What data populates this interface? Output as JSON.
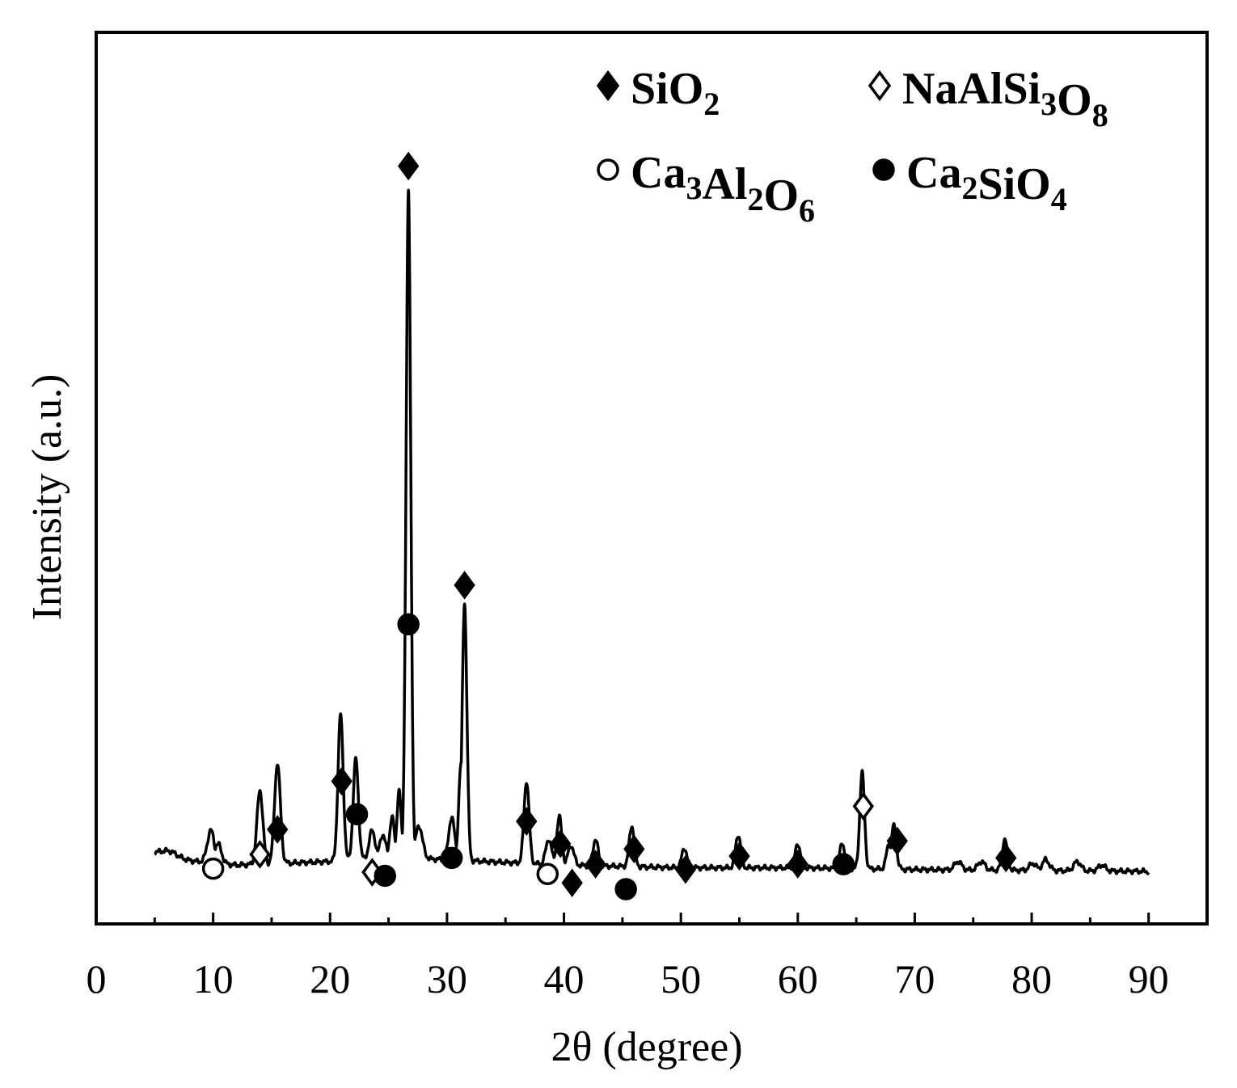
{
  "chart_data": {
    "type": "line",
    "title": "",
    "xlabel": "2θ (degree)",
    "ylabel": "Intensity (a.u.)",
    "xlim": [
      0,
      95
    ],
    "ylim": [
      0,
      100
    ],
    "x_ticks": [
      0,
      10,
      20,
      30,
      40,
      50,
      60,
      70,
      80,
      90
    ],
    "x_tick_labels": [
      "0",
      "10",
      "20",
      "30",
      "40",
      "50",
      "60",
      "70",
      "80",
      "90"
    ],
    "y_ticks": [],
    "grid": false,
    "legend_position": "top-right",
    "legend": [
      {
        "marker": "filled-diamond",
        "base": "SiO",
        "sub": "2"
      },
      {
        "marker": "open-diamond",
        "base": "NaAlSi",
        "sub": "3",
        "base2": "O",
        "sub2": "8"
      },
      {
        "marker": "open-circle",
        "base": "Ca",
        "sub": "3",
        "base2": "Al",
        "sub2": "2",
        "base3": "O",
        "sub3": "6"
      },
      {
        "marker": "filled-circle",
        "base": "Ca",
        "sub": "2",
        "base2": "SiO",
        "sub2": "4"
      }
    ],
    "baseline": {
      "x": [
        5,
        7,
        12,
        20,
        25,
        30,
        40,
        50,
        60,
        70,
        80,
        90
      ],
      "y": [
        8,
        7.2,
        6.6,
        7.0,
        7.5,
        7.2,
        6.6,
        6.3,
        6.3,
        6.1,
        6.0,
        5.9
      ]
    },
    "peaks": [
      {
        "x": 6.0,
        "y": 8.2,
        "w": 0.8
      },
      {
        "x": 9.8,
        "y": 10.5,
        "w": 0.3
      },
      {
        "x": 10.4,
        "y": 9.0,
        "w": 0.3
      },
      {
        "x": 14.0,
        "y": 15.0,
        "w": 0.25
      },
      {
        "x": 15.5,
        "y": 18.0,
        "w": 0.25
      },
      {
        "x": 20.9,
        "y": 23.5,
        "w": 0.22
      },
      {
        "x": 22.2,
        "y": 18.5,
        "w": 0.22
      },
      {
        "x": 23.6,
        "y": 10.5,
        "w": 0.25
      },
      {
        "x": 24.5,
        "y": 10.0,
        "w": 0.25
      },
      {
        "x": 25.3,
        "y": 12.0,
        "w": 0.2
      },
      {
        "x": 25.9,
        "y": 15.0,
        "w": 0.18
      },
      {
        "x": 26.7,
        "y": 82.0,
        "w": 0.2
      },
      {
        "x": 27.6,
        "y": 11.0,
        "w": 0.3
      },
      {
        "x": 30.4,
        "y": 12.0,
        "w": 0.25
      },
      {
        "x": 31.5,
        "y": 36.0,
        "w": 0.2
      },
      {
        "x": 31.2,
        "y": 18.0,
        "w": 0.2
      },
      {
        "x": 36.8,
        "y": 16.0,
        "w": 0.22
      },
      {
        "x": 38.7,
        "y": 9.5,
        "w": 0.25
      },
      {
        "x": 39.6,
        "y": 12.0,
        "w": 0.22
      },
      {
        "x": 40.6,
        "y": 8.8,
        "w": 0.25
      },
      {
        "x": 42.7,
        "y": 9.5,
        "w": 0.22
      },
      {
        "x": 45.8,
        "y": 11.0,
        "w": 0.22
      },
      {
        "x": 50.3,
        "y": 8.5,
        "w": 0.22
      },
      {
        "x": 54.9,
        "y": 10.0,
        "w": 0.22
      },
      {
        "x": 60.0,
        "y": 9.0,
        "w": 0.22
      },
      {
        "x": 63.8,
        "y": 9.0,
        "w": 0.22
      },
      {
        "x": 65.5,
        "y": 17.0,
        "w": 0.2
      },
      {
        "x": 67.8,
        "y": 9.0,
        "w": 0.22
      },
      {
        "x": 68.2,
        "y": 11.0,
        "w": 0.22
      },
      {
        "x": 73.7,
        "y": 7.0,
        "w": 0.3
      },
      {
        "x": 75.7,
        "y": 7.0,
        "w": 0.3
      },
      {
        "x": 77.7,
        "y": 9.5,
        "w": 0.22
      },
      {
        "x": 80.1,
        "y": 6.8,
        "w": 0.3
      },
      {
        "x": 81.2,
        "y": 7.2,
        "w": 0.3
      },
      {
        "x": 83.9,
        "y": 7.0,
        "w": 0.3
      },
      {
        "x": 86.0,
        "y": 6.6,
        "w": 0.3
      }
    ],
    "markers": [
      {
        "phase": "SiO2",
        "marker": "filled-diamond",
        "x": 26.7,
        "y": 85.0
      },
      {
        "phase": "Ca2SiO4",
        "marker": "filled-circle",
        "x": 26.7,
        "y": 33.6
      },
      {
        "phase": "SiO2",
        "marker": "filled-diamond",
        "x": 31.5,
        "y": 38.0
      },
      {
        "phase": "SiO2",
        "marker": "filled-diamond",
        "x": 21.0,
        "y": 16.0
      },
      {
        "phase": "Ca2SiO4",
        "marker": "filled-circle",
        "x": 22.3,
        "y": 12.3
      },
      {
        "phase": "SiO2",
        "marker": "filled-diamond",
        "x": 15.5,
        "y": 10.6
      },
      {
        "phase": "NaAlSi3O8",
        "marker": "open-diamond",
        "x": 14.0,
        "y": 7.8
      },
      {
        "phase": "Ca3Al2O6",
        "marker": "open-circle",
        "x": 10.0,
        "y": 6.2
      },
      {
        "phase": "NaAlSi3O8",
        "marker": "open-diamond",
        "x": 23.6,
        "y": 5.8
      },
      {
        "phase": "Ca2SiO4",
        "marker": "filled-circle",
        "x": 24.7,
        "y": 5.4
      },
      {
        "phase": "Ca2SiO4",
        "marker": "filled-circle",
        "x": 30.4,
        "y": 7.4
      },
      {
        "phase": "SiO2",
        "marker": "filled-diamond",
        "x": 36.8,
        "y": 11.5
      },
      {
        "phase": "SiO2",
        "marker": "filled-diamond",
        "x": 39.7,
        "y": 9.0
      },
      {
        "phase": "Ca3Al2O6",
        "marker": "open-circle",
        "x": 38.6,
        "y": 5.6
      },
      {
        "phase": "SiO2",
        "marker": "filled-diamond",
        "x": 40.7,
        "y": 4.6
      },
      {
        "phase": "SiO2",
        "marker": "filled-diamond",
        "x": 42.7,
        "y": 6.7
      },
      {
        "phase": "Ca2SiO4",
        "marker": "filled-circle",
        "x": 45.3,
        "y": 3.9
      },
      {
        "phase": "SiO2",
        "marker": "filled-diamond",
        "x": 46.0,
        "y": 8.4
      },
      {
        "phase": "SiO2",
        "marker": "filled-diamond",
        "x": 50.4,
        "y": 6.1
      },
      {
        "phase": "SiO2",
        "marker": "filled-diamond",
        "x": 55.0,
        "y": 7.6
      },
      {
        "phase": "SiO2",
        "marker": "filled-diamond",
        "x": 60.0,
        "y": 6.7
      },
      {
        "phase": "Ca2SiO4",
        "marker": "filled-circle",
        "x": 63.9,
        "y": 6.7
      },
      {
        "phase": "NaAlSi3O8",
        "marker": "open-diamond",
        "x": 65.6,
        "y": 13.2
      },
      {
        "phase": "SiO2",
        "marker": "filled-diamond",
        "x": 68.5,
        "y": 9.3
      },
      {
        "phase": "SiO2",
        "marker": "filled-diamond",
        "x": 77.8,
        "y": 7.4
      }
    ]
  }
}
